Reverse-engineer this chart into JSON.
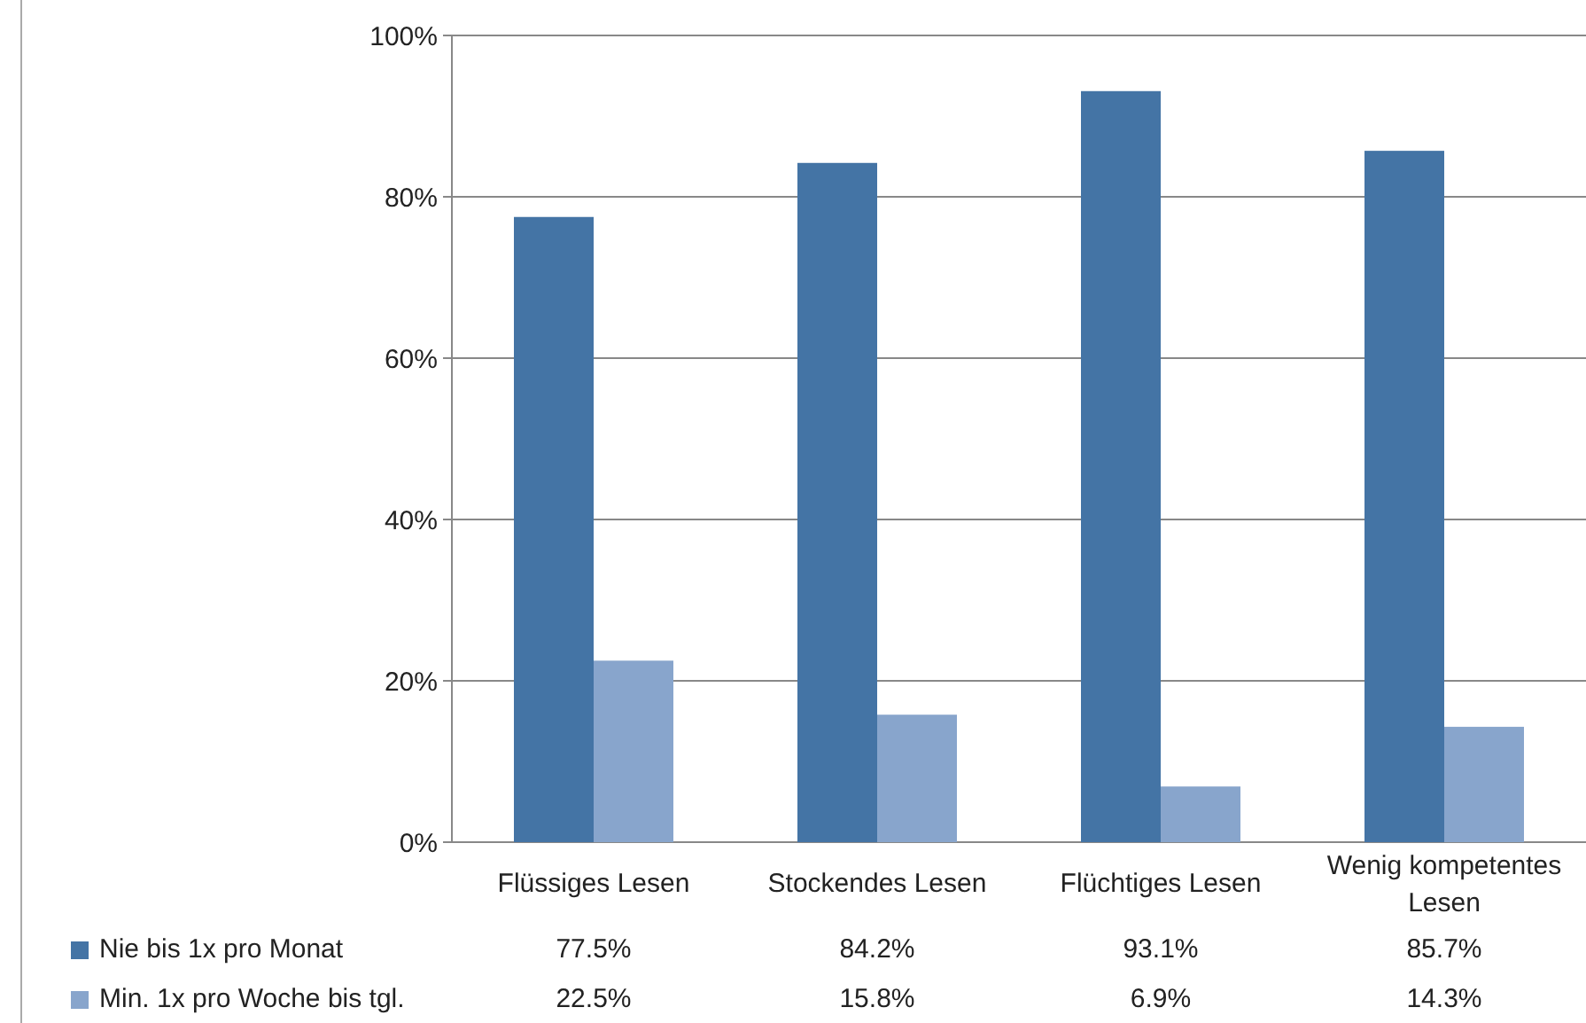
{
  "chart_data": {
    "type": "bar",
    "categories": [
      "Flüssiges Lesen",
      "Stockendes Lesen",
      "Flüchtiges Lesen",
      "Wenig kompetentes Lesen"
    ],
    "series": [
      {
        "name": "Nie bis 1x pro Monat",
        "color": "#4474a5",
        "values": [
          77.5,
          84.2,
          93.1,
          85.7
        ],
        "value_labels": [
          "77.5%",
          "84.2%",
          "93.1%",
          "85.7%"
        ]
      },
      {
        "name": "Min. 1x pro Woche bis tgl.",
        "color": "#88a5cc",
        "values": [
          22.5,
          15.8,
          6.9,
          14.3
        ],
        "value_labels": [
          "22.5%",
          "15.8%",
          "6.9%",
          "14.3%"
        ]
      }
    ],
    "ylim": [
      0,
      100
    ],
    "yticks": [
      {
        "value": 0,
        "label": "0%"
      },
      {
        "value": 20,
        "label": "20%"
      },
      {
        "value": 40,
        "label": "40%"
      },
      {
        "value": 60,
        "label": "60%"
      },
      {
        "value": 80,
        "label": "80%"
      },
      {
        "value": 100,
        "label": "100%"
      }
    ],
    "grid": "y",
    "legend": "bottom left"
  }
}
